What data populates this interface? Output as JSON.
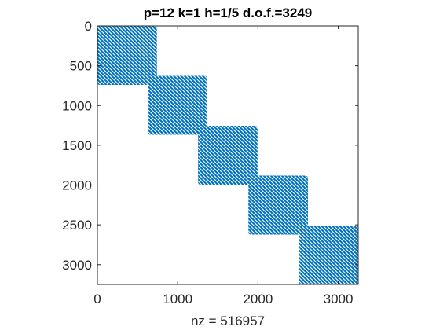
{
  "chart_data": {
    "type": "spy",
    "title": "p=12 k=1 h=1/5 d.o.f.=3249",
    "xlabel": "nz = 516957",
    "ylabel": "",
    "xlim": [
      0,
      3249
    ],
    "ylim": [
      0,
      3249
    ],
    "y_reversed": true,
    "grid": false,
    "xticks": [
      0,
      1000,
      2000,
      3000
    ],
    "yticks": [
      0,
      500,
      1000,
      1500,
      2000,
      2500,
      3000
    ],
    "marker_color": "#0072BD",
    "blocks": [
      {
        "start": 0,
        "end": 741
      },
      {
        "start": 627,
        "end": 1368
      },
      {
        "start": 1254,
        "end": 1995
      },
      {
        "start": 1881,
        "end": 2622
      },
      {
        "start": 2508,
        "end": 3249
      }
    ]
  }
}
